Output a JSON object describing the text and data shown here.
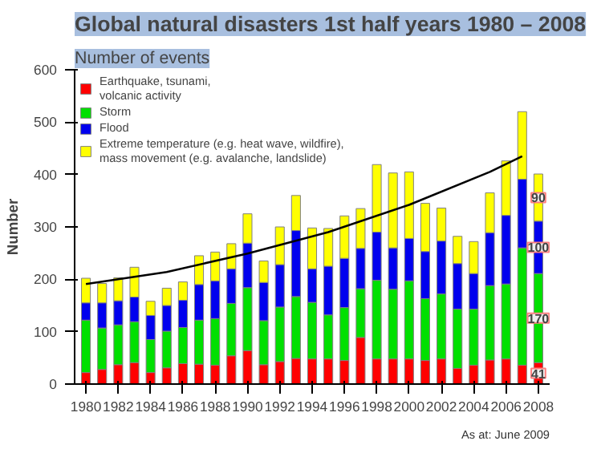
{
  "chart_data": {
    "type": "bar",
    "title": "Global natural disasters 1st half years 1980 – 2008",
    "subtitle": "Number of events",
    "ylabel": "Number",
    "x": [
      1980,
      1981,
      1982,
      1983,
      1984,
      1985,
      1986,
      1987,
      1988,
      1989,
      1990,
      1991,
      1992,
      1993,
      1994,
      1995,
      1996,
      1997,
      1998,
      1999,
      2000,
      2001,
      2002,
      2003,
      2004,
      2005,
      2006,
      2007,
      2008
    ],
    "stacked": true,
    "series": [
      {
        "name": "Earthquake, tsunami,\nvolcanic activity",
        "color": "#ff0000",
        "values": [
          22,
          28,
          37,
          41,
          22,
          31,
          39,
          38,
          36,
          54,
          64,
          37,
          43,
          49,
          48,
          48,
          45,
          89,
          48,
          48,
          48,
          45,
          48,
          30,
          36,
          46,
          48,
          36,
          41
        ],
        "value_labels": [
          null,
          null,
          null,
          null,
          null,
          null,
          null,
          null,
          null,
          null,
          null,
          null,
          null,
          null,
          null,
          null,
          null,
          null,
          null,
          null,
          null,
          null,
          null,
          null,
          null,
          null,
          null,
          null,
          "41"
        ]
      },
      {
        "name": "Storm",
        "color": "#00e000",
        "values": [
          100,
          79,
          76,
          78,
          63,
          70,
          69,
          84,
          89,
          100,
          120,
          84,
          104,
          118,
          108,
          84,
          101,
          93,
          150,
          133,
          149,
          118,
          124,
          113,
          107,
          142,
          143,
          224,
          170
        ],
        "value_labels": [
          null,
          null,
          null,
          null,
          null,
          null,
          null,
          null,
          null,
          null,
          null,
          null,
          null,
          null,
          null,
          null,
          null,
          null,
          null,
          null,
          null,
          null,
          null,
          null,
          null,
          null,
          null,
          null,
          "170"
        ]
      },
      {
        "name": "Flood",
        "color": "#0000ee",
        "values": [
          33,
          48,
          46,
          47,
          46,
          49,
          52,
          68,
          72,
          66,
          85,
          73,
          81,
          126,
          64,
          93,
          94,
          77,
          92,
          79,
          81,
          90,
          101,
          87,
          68,
          101,
          131,
          131,
          100
        ],
        "value_labels": [
          null,
          null,
          null,
          null,
          null,
          null,
          null,
          null,
          null,
          null,
          null,
          null,
          null,
          null,
          null,
          null,
          null,
          null,
          null,
          null,
          null,
          null,
          null,
          null,
          null,
          null,
          null,
          null,
          "100"
        ]
      },
      {
        "name": "Extreme temperature (e.g. heat wave, wildfire),\nmass movement (e.g. avalanche, landslide)",
        "color": "#ffff00",
        "values": [
          47,
          37,
          44,
          57,
          27,
          33,
          35,
          55,
          55,
          48,
          56,
          41,
          72,
          67,
          78,
          72,
          81,
          76,
          129,
          143,
          127,
          92,
          63,
          52,
          61,
          76,
          104,
          129,
          90
        ],
        "value_labels": [
          null,
          null,
          null,
          null,
          null,
          null,
          null,
          null,
          null,
          null,
          null,
          null,
          null,
          null,
          null,
          null,
          null,
          null,
          null,
          null,
          null,
          null,
          null,
          null,
          null,
          null,
          null,
          null,
          "90"
        ]
      },
      {
        "type": "line",
        "color": "#000000",
        "x": [
          1980,
          1985,
          1990,
          1995,
          2000,
          2005,
          2007
        ],
        "values": [
          191,
          214,
          249,
          290,
          342,
          405,
          435
        ]
      }
    ],
    "xlim": [
      1979.3,
      2008.7
    ],
    "xticks": [
      1980,
      1982,
      1984,
      1986,
      1988,
      1990,
      1992,
      1994,
      1996,
      1998,
      2000,
      2002,
      2004,
      2006,
      2008
    ],
    "ylim": [
      0,
      600
    ],
    "yticks": [
      0,
      100,
      200,
      300,
      400,
      500,
      600
    ],
    "grid": false,
    "legend": "top left",
    "annotations": [
      "As at: June 2009"
    ]
  }
}
